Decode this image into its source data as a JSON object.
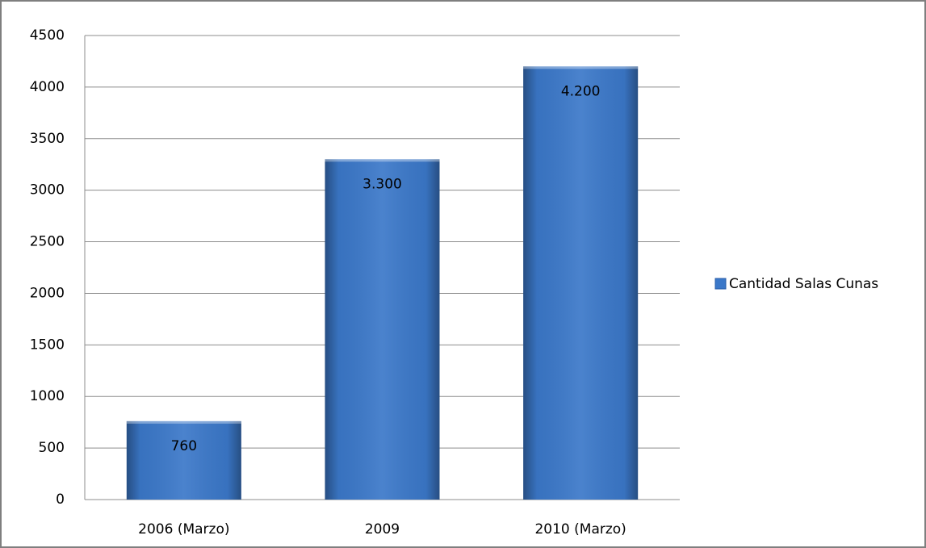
{
  "chart_data": {
    "type": "bar",
    "categories": [
      "2006 (Marzo)",
      "2009",
      "2010 (Marzo)"
    ],
    "series": [
      {
        "name": "Cantidad Salas Cunas",
        "color": "#3b78c9",
        "values": [
          760,
          3300,
          4200
        ],
        "value_labels": [
          "760",
          "3.300",
          "4.200"
        ]
      }
    ],
    "ylim": [
      0,
      4500
    ],
    "yticks": [
      0,
      500,
      1000,
      1500,
      2000,
      2500,
      3000,
      3500,
      4000,
      4500
    ],
    "grid": true,
    "legend": "right"
  }
}
